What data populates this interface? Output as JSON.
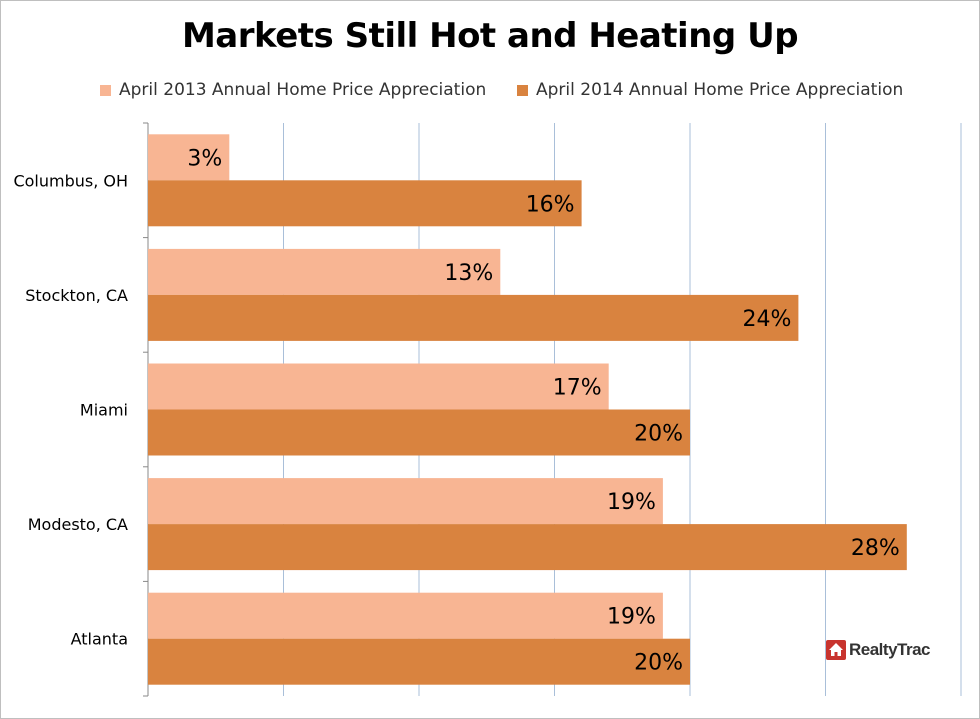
{
  "chart_data": {
    "type": "bar",
    "orientation": "horizontal",
    "title": "Markets Still Hot and Heating Up",
    "categories": [
      "Columbus, OH",
      "Stockton, CA",
      "Miami",
      "Modesto, CA",
      "Atlanta"
    ],
    "series": [
      {
        "name": "April 2013 Annual Home Price Appreciation",
        "color": "#f8b593",
        "values": [
          3,
          13,
          17,
          19,
          19
        ],
        "labels": [
          "3%",
          "13%",
          "17%",
          "19%",
          "19%"
        ]
      },
      {
        "name": "April 2014 Annual Home Price Appreciation",
        "color": "#d9833f",
        "values": [
          16,
          24,
          20,
          28,
          20
        ],
        "labels": [
          "16%",
          "24%",
          "20%",
          "28%",
          "20%"
        ]
      }
    ],
    "xlim": [
      0,
      30
    ],
    "grid": "vertical",
    "legend_position": "top",
    "xlabel": "",
    "ylabel": ""
  },
  "logo": {
    "text": "RealtyTrac",
    "icon": "house-icon",
    "color": "#c8342e"
  }
}
